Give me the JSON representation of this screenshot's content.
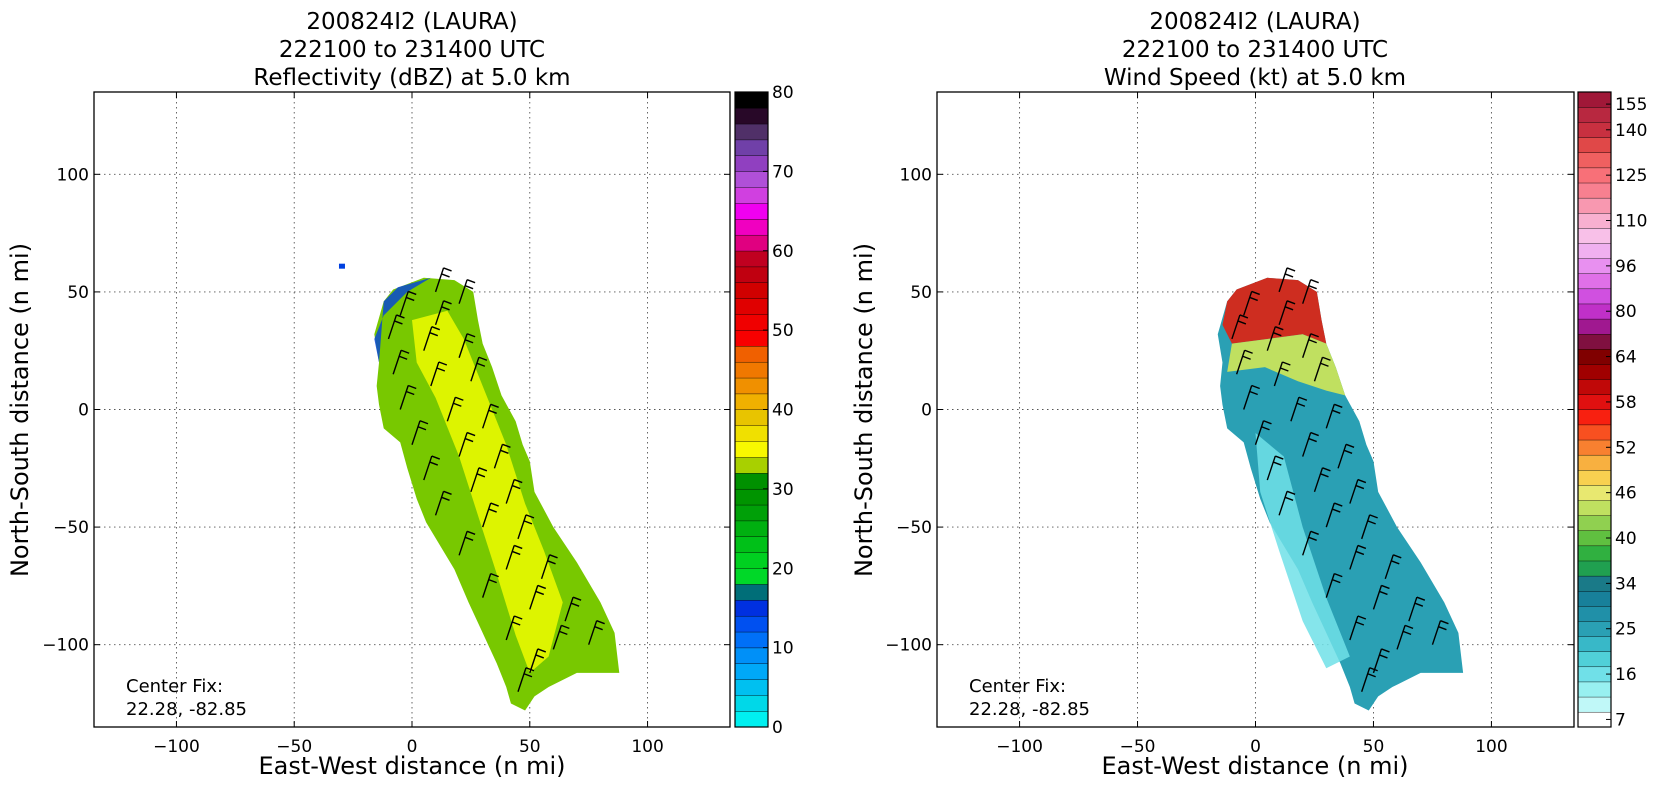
{
  "chart_data": [
    {
      "type": "heatmap",
      "title_lines": [
        "200824I2 (LAURA)",
        "222100 to 231400 UTC",
        "Reflectivity (dBZ) at 5.0 km"
      ],
      "xlabel": "East-West distance (n mi)",
      "ylabel": "North-South distance (n mi)",
      "xlim": [
        -135,
        135
      ],
      "ylim": [
        -135,
        135
      ],
      "xticks": [
        -100,
        -50,
        0,
        50,
        100
      ],
      "yticks": [
        -100,
        -50,
        0,
        50,
        100
      ],
      "xtick_labels": [
        "−100",
        "−50",
        "0",
        "50",
        "100"
      ],
      "ytick_labels": [
        "−100",
        "−50",
        "0",
        "50",
        "100"
      ],
      "grid": true,
      "annotation": [
        "Center Fix:",
        "22.28, -82.85"
      ],
      "colorbar": {
        "min": 0,
        "max": 80,
        "colors": [
          "#00f0f0",
          "#00d8e8",
          "#00c0f0",
          "#00a8f8",
          "#0090f8",
          "#0070f8",
          "#0050f0",
          "#0030e0",
          "#006e78",
          "#00d828",
          "#00d020",
          "#00c018",
          "#00b010",
          "#00a008",
          "#009400",
          "#009000",
          "#a8d000",
          "#f8f800",
          "#f0e000",
          "#e8c400",
          "#f0b000",
          "#f09000",
          "#f07800",
          "#f06000",
          "#f80000",
          "#f00000",
          "#e00000",
          "#d00000",
          "#c00010",
          "#c00020",
          "#e00080",
          "#f000c0",
          "#f000f0",
          "#d040e0",
          "#b050d8",
          "#9040c0",
          "#7040a8",
          "#503068",
          "#280828",
          "#000000"
        ],
        "tick_values": [
          0,
          10,
          20,
          30,
          40,
          50,
          60,
          70,
          80
        ],
        "tick_labels": [
          "0",
          "10",
          "20",
          "30",
          "40",
          "50",
          "60",
          "70",
          "80"
        ]
      },
      "field_color_scale": [
        "#e8f800",
        "#b8e000",
        "#78c800",
        "#30b020",
        "#08a040",
        "#0040e0"
      ]
    },
    {
      "type": "heatmap",
      "title_lines": [
        "200824I2 (LAURA)",
        "222100 to 231400 UTC",
        "Wind Speed (kt) at 5.0 km"
      ],
      "xlabel": "East-West distance (n mi)",
      "ylabel": "North-South distance (n mi)",
      "xlim": [
        -135,
        135
      ],
      "ylim": [
        -135,
        135
      ],
      "xticks": [
        -100,
        -50,
        0,
        50,
        100
      ],
      "yticks": [
        -100,
        -50,
        0,
        50,
        100
      ],
      "xtick_labels": [
        "−100",
        "−50",
        "0",
        "50",
        "100"
      ],
      "ytick_labels": [
        "−100",
        "−50",
        "0",
        "50",
        "100"
      ],
      "grid": true,
      "annotation": [
        "Center Fix:",
        "22.28, -82.85"
      ],
      "colorbar": {
        "min": 7,
        "max": 160,
        "colors": [
          "#ffffff",
          "#c0f8f8",
          "#98f0f0",
          "#70e0e8",
          "#50d0d8",
          "#38b8c8",
          "#2aa0b4",
          "#2090a8",
          "#18809a",
          "#1a7a88",
          "#20a050",
          "#30b040",
          "#60c040",
          "#90d050",
          "#c0e060",
          "#e8e870",
          "#f8d050",
          "#f8b040",
          "#f88030",
          "#f85020",
          "#f82010",
          "#e01010",
          "#c00808",
          "#a00000",
          "#800000",
          "#801040",
          "#a01890",
          "#c030c8",
          "#d050e0",
          "#e070e8",
          "#e890f0",
          "#f0b0f0",
          "#f8c0e8",
          "#f8b0d0",
          "#f898b0",
          "#f88090",
          "#f87078",
          "#f06060",
          "#e04848",
          "#c83040",
          "#b82840",
          "#a01838"
        ],
        "tick_values": [
          7,
          16,
          25,
          34,
          40,
          46,
          52,
          58,
          64,
          80,
          96,
          110,
          125,
          140,
          155
        ],
        "tick_labels": [
          "7",
          "16",
          "25",
          "34",
          "40",
          "46",
          "52",
          "58",
          "64",
          "80",
          "96",
          "110",
          "125",
          "140",
          "155"
        ]
      },
      "field_color_scale": [
        "#e02010",
        "#f08030",
        "#c0e060",
        "#2aa0b4",
        "#70e0e8",
        "#b0f0f0"
      ]
    }
  ]
}
